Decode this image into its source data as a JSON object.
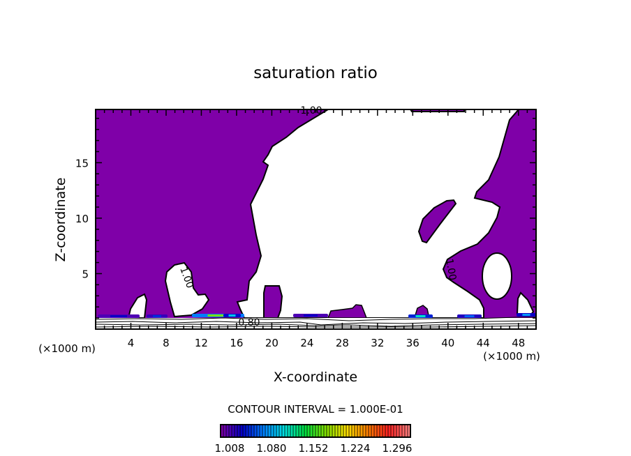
{
  "chart_data": {
    "type": "contour",
    "title": "saturation ratio",
    "xlabel": "X-coordinate",
    "ylabel": "Z-coordinate",
    "x_unit": "(×1000 m)",
    "y_unit": "(×1000 m)",
    "xlim": [
      0,
      50
    ],
    "ylim": [
      0,
      19.8
    ],
    "xticks": [
      4,
      8,
      12,
      16,
      20,
      24,
      28,
      32,
      36,
      40,
      44,
      48
    ],
    "yticks": [
      5,
      10,
      15
    ],
    "contour_labels": [
      "1.00",
      "1.00",
      "1.00",
      "0.80"
    ],
    "contour_interval": "CONTOUR INTERVAL = 1.000E-01",
    "colorbar": {
      "ticks": [
        "1.008",
        "1.080",
        "1.152",
        "1.224",
        "1.296"
      ],
      "colors": [
        "#7a00a8",
        "#0000c8",
        "#0080ff",
        "#00e0e0",
        "#00e040",
        "#80e000",
        "#ffe000",
        "#ff8000",
        "#ff2020",
        "#ff8080"
      ]
    },
    "fill_color": "#7f00a8"
  }
}
